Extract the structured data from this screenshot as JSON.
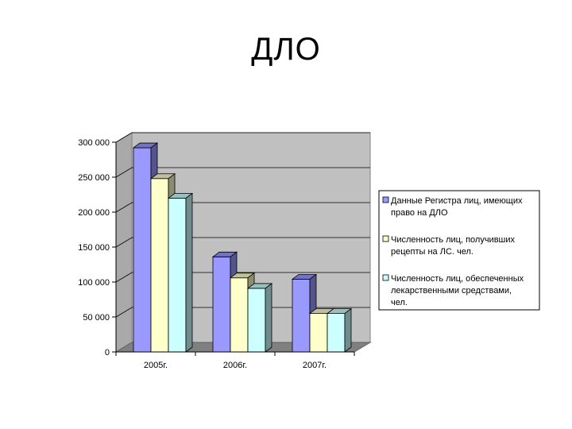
{
  "slide": {
    "title": "ДЛО"
  },
  "chart_data": {
    "type": "bar",
    "title": "",
    "xlabel": "",
    "ylabel": "",
    "categories": [
      "2005г.",
      "2006г.",
      "2007г."
    ],
    "ylim": [
      0,
      300000
    ],
    "yticks": [
      0,
      50000,
      100000,
      150000,
      200000,
      250000,
      300000
    ],
    "ytick_labels": [
      "0",
      "50 000",
      "100 000",
      "150 000",
      "200 000",
      "250 000",
      "300 000"
    ],
    "grid": true,
    "legend_position": "right",
    "series": [
      {
        "name": "Данные Регистра лиц, имеющих право на ДЛО",
        "values": [
          292000,
          136000,
          104000
        ],
        "color": "#9999ff"
      },
      {
        "name": "Численность лиц, получивших рецепты на ЛС. чел.",
        "values": [
          248000,
          106000,
          55000
        ],
        "color": "#ffffcc"
      },
      {
        "name": "Численность лиц, обеспеченных лекарственными средствами, чел.",
        "values": [
          220000,
          91000,
          55000
        ],
        "color": "#ccffff"
      }
    ],
    "legend_lines": [
      [
        "Данные Регистра лиц, имеющих",
        "право на ДЛО"
      ],
      [
        "Численность лиц, получивших",
        "рецепты на ЛС. чел."
      ],
      [
        "Численность лиц, обеспеченных",
        "лекарственными средствами,",
        "чел."
      ]
    ]
  }
}
